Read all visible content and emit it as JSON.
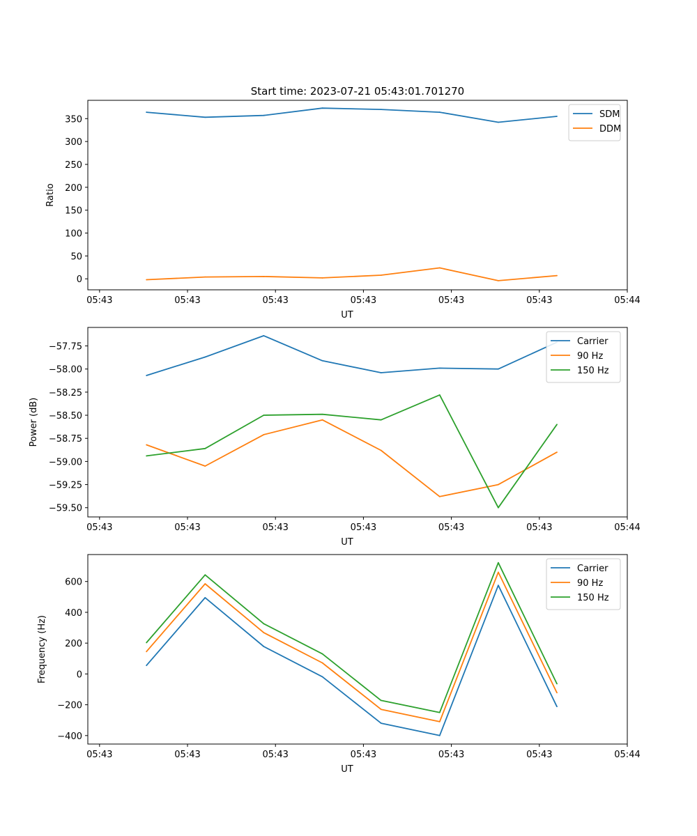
{
  "figure": {
    "title": "Start time: 2023-07-21 05:43:01.701270"
  },
  "chart_data": [
    {
      "type": "line",
      "xlabel": "UT",
      "ylabel": "Ratio",
      "x_ticks": [
        "05:43",
        "05:43",
        "05:43",
        "05:43",
        "05:43",
        "05:43",
        "05:44"
      ],
      "x_domain": [
        0,
        9.2
      ],
      "x": [
        1,
        2,
        3,
        4,
        5,
        6,
        7,
        8
      ],
      "ylim": [
        -24,
        390
      ],
      "y_ticks": [
        0,
        50,
        100,
        150,
        200,
        250,
        300,
        350
      ],
      "y_tick_labels": [
        "0",
        "50",
        "100",
        "150",
        "200",
        "250",
        "300",
        "350"
      ],
      "legend_position": "top-right",
      "series": [
        {
          "name": "SDM",
          "color": "#1f77b4",
          "values": [
            364,
            353,
            357,
            373,
            370,
            364,
            342,
            355
          ]
        },
        {
          "name": "DDM",
          "color": "#ff7f0e",
          "values": [
            -2,
            4,
            5,
            2,
            8,
            24,
            -4,
            7
          ]
        }
      ]
    },
    {
      "type": "line",
      "xlabel": "UT",
      "ylabel": "Power (dB)",
      "x_ticks": [
        "05:43",
        "05:43",
        "05:43",
        "05:43",
        "05:43",
        "05:43",
        "05:44"
      ],
      "x_domain": [
        0,
        9.2
      ],
      "x": [
        1,
        2,
        3,
        4,
        5,
        6,
        7,
        8
      ],
      "ylim": [
        -59.6,
        -57.55
      ],
      "y_ticks": [
        -57.75,
        -58.0,
        -58.25,
        -58.5,
        -58.75,
        -59.0,
        -59.25,
        -59.5
      ],
      "y_tick_labels": [
        "−57.75",
        "−58.00",
        "−58.25",
        "−58.50",
        "−58.75",
        "−59.00",
        "−59.25",
        "−59.50"
      ],
      "legend_position": "top-right",
      "series": [
        {
          "name": "Carrier",
          "color": "#1f77b4",
          "values": [
            -58.07,
            -57.87,
            -57.64,
            -57.91,
            -58.04,
            -57.99,
            -58.0,
            -57.71
          ]
        },
        {
          "name": "90 Hz",
          "color": "#ff7f0e",
          "values": [
            -58.82,
            -59.05,
            -58.71,
            -58.55,
            -58.88,
            -59.38,
            -59.25,
            -58.9
          ]
        },
        {
          "name": "150 Hz",
          "color": "#2ca02c",
          "values": [
            -58.94,
            -58.86,
            -58.5,
            -58.49,
            -58.55,
            -58.28,
            -59.5,
            -58.6
          ]
        }
      ]
    },
    {
      "type": "line",
      "xlabel": "UT",
      "ylabel": "Frequency (Hz)",
      "x_ticks": [
        "05:43",
        "05:43",
        "05:43",
        "05:43",
        "05:43",
        "05:43",
        "05:44"
      ],
      "x_domain": [
        0,
        9.2
      ],
      "x": [
        1,
        2,
        3,
        4,
        5,
        6,
        7,
        8
      ],
      "ylim": [
        -455,
        775
      ],
      "y_ticks": [
        600,
        400,
        200,
        0,
        -200,
        -400
      ],
      "y_tick_labels": [
        "600",
        "400",
        "200",
        "0",
        "−200",
        "−400"
      ],
      "legend_position": "top-right",
      "series": [
        {
          "name": "Carrier",
          "color": "#1f77b4",
          "values": [
            55,
            495,
            178,
            -18,
            -320,
            -400,
            575,
            -212
          ]
        },
        {
          "name": "90 Hz",
          "color": "#ff7f0e",
          "values": [
            145,
            585,
            268,
            72,
            -230,
            -310,
            660,
            -122
          ]
        },
        {
          "name": "150 Hz",
          "color": "#2ca02c",
          "values": [
            203,
            643,
            326,
            130,
            -172,
            -250,
            722,
            -64
          ]
        }
      ]
    }
  ]
}
